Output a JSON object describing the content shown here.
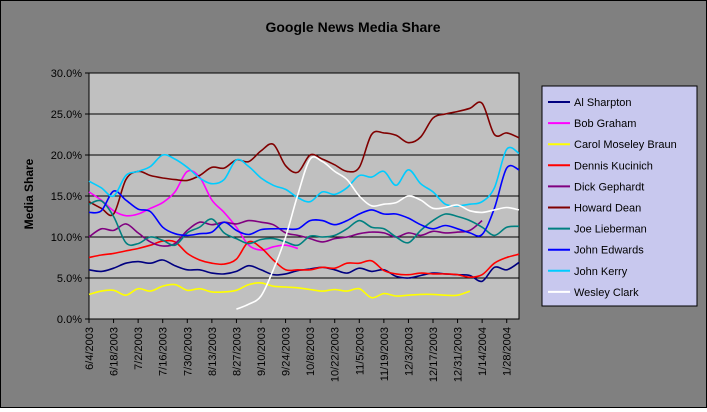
{
  "colors": {
    "chart_area": "#808080",
    "plot_area": "#c0c0c0",
    "legend_bg": "#c8c8ee"
  },
  "chart_data": {
    "type": "line",
    "title": "Google News Media Share",
    "xlabel": "",
    "ylabel": "Media Share",
    "ylim": [
      0,
      30
    ],
    "ytick_labels": [
      "0.0%",
      "5.0%",
      "10.0%",
      "15.0%",
      "20.0%",
      "25.0%",
      "30.0%"
    ],
    "ytick_values": [
      0,
      5,
      10,
      15,
      20,
      25,
      30
    ],
    "xlim": [
      "6/4/2003",
      "2/4/2004"
    ],
    "xtick_labels": [
      "6/4/2003",
      "6/18/2003",
      "7/2/2003",
      "7/16/2003",
      "7/30/2003",
      "8/13/2003",
      "8/27/2003",
      "9/10/2003",
      "9/24/2003",
      "10/8/2003",
      "10/22/2003",
      "11/5/2003",
      "11/19/2003",
      "12/3/2003",
      "12/17/2003",
      "12/31/2003",
      "1/14/2004",
      "1/28/2004"
    ],
    "grid": "horizontal",
    "legend_position": "right",
    "series": [
      {
        "name": "Al Sharpton",
        "color": "#000080",
        "x": [
          "6/4/2003",
          "6/11/2003",
          "6/18/2003",
          "6/25/2003",
          "7/2/2003",
          "7/9/2003",
          "7/16/2003",
          "7/23/2003",
          "7/30/2003",
          "8/6/2003",
          "8/13/2003",
          "8/20/2003",
          "8/27/2003",
          "9/3/2003",
          "9/10/2003",
          "9/17/2003",
          "9/24/2003",
          "10/1/2003",
          "10/8/2003",
          "10/15/2003",
          "10/22/2003",
          "10/29/2003",
          "11/5/2003",
          "11/12/2003",
          "11/19/2003",
          "11/26/2003",
          "12/3/2003",
          "12/10/2003",
          "12/17/2003",
          "12/24/2003",
          "12/31/2003",
          "1/7/2004",
          "1/14/2004",
          "1/21/2004",
          "1/28/2004",
          "2/4/2004"
        ],
        "values": [
          6.0,
          5.8,
          6.2,
          6.8,
          7.0,
          6.8,
          7.2,
          6.5,
          6.0,
          6.0,
          5.6,
          5.5,
          5.8,
          6.5,
          6.0,
          5.4,
          5.5,
          5.9,
          6.1,
          6.3,
          6.0,
          5.6,
          6.2,
          5.8,
          6.0,
          5.2,
          5.0,
          5.3,
          5.6,
          5.5,
          5.4,
          5.3,
          4.6,
          6.3,
          6.0,
          6.9
        ]
      },
      {
        "name": "Bob Graham",
        "color": "#ff00ff",
        "x": [
          "6/4/2003",
          "6/11/2003",
          "6/18/2003",
          "6/25/2003",
          "7/2/2003",
          "7/9/2003",
          "7/16/2003",
          "7/23/2003",
          "7/30/2003",
          "8/6/2003",
          "8/13/2003",
          "8/20/2003",
          "8/27/2003",
          "9/3/2003",
          "9/10/2003",
          "9/17/2003",
          "9/24/2003",
          "10/1/2003"
        ],
        "values": [
          15.5,
          14.5,
          13.2,
          12.6,
          12.8,
          13.5,
          14.2,
          15.5,
          18.0,
          17.3,
          14.5,
          13.0,
          11.2,
          9.0,
          8.4,
          8.8,
          9.0,
          8.6
        ]
      },
      {
        "name": "Carol Moseley Braun",
        "color": "#ffff00",
        "x": [
          "6/4/2003",
          "6/11/2003",
          "6/18/2003",
          "6/25/2003",
          "7/2/2003",
          "7/9/2003",
          "7/16/2003",
          "7/23/2003",
          "7/30/2003",
          "8/6/2003",
          "8/13/2003",
          "8/20/2003",
          "8/27/2003",
          "9/3/2003",
          "9/10/2003",
          "9/17/2003",
          "9/24/2003",
          "10/1/2003",
          "10/8/2003",
          "10/15/2003",
          "10/22/2003",
          "10/29/2003",
          "11/5/2003",
          "11/12/2003",
          "11/19/2003",
          "11/26/2003",
          "12/3/2003",
          "12/10/2003",
          "12/17/2003",
          "12/24/2003",
          "12/31/2003",
          "1/7/2004"
        ],
        "values": [
          3.0,
          3.4,
          3.5,
          2.9,
          3.7,
          3.4,
          4.0,
          4.2,
          3.5,
          3.7,
          3.3,
          3.3,
          3.5,
          4.2,
          4.4,
          4.0,
          3.9,
          3.8,
          3.6,
          3.4,
          3.6,
          3.4,
          3.7,
          2.6,
          3.1,
          2.8,
          2.9,
          3.0,
          3.0,
          2.9,
          2.9,
          3.4
        ]
      },
      {
        "name": "Dennis Kucinich",
        "color": "#ff0000",
        "x": [
          "6/4/2003",
          "6/11/2003",
          "6/18/2003",
          "6/25/2003",
          "7/2/2003",
          "7/9/2003",
          "7/16/2003",
          "7/23/2003",
          "7/30/2003",
          "8/6/2003",
          "8/13/2003",
          "8/20/2003",
          "8/27/2003",
          "9/3/2003",
          "9/10/2003",
          "9/17/2003",
          "9/24/2003",
          "10/1/2003",
          "10/8/2003",
          "10/15/2003",
          "10/22/2003",
          "10/29/2003",
          "11/5/2003",
          "11/12/2003",
          "11/19/2003",
          "11/26/2003",
          "12/3/2003",
          "12/10/2003",
          "12/17/2003",
          "12/24/2003",
          "12/31/2003",
          "1/7/2004",
          "1/14/2004",
          "1/21/2004",
          "1/28/2004",
          "2/4/2004"
        ],
        "values": [
          7.5,
          7.8,
          8.0,
          8.3,
          8.6,
          9.0,
          9.5,
          9.4,
          8.0,
          7.2,
          6.8,
          6.7,
          7.3,
          9.4,
          8.7,
          7.2,
          6.0,
          6.0,
          6.0,
          6.3,
          6.2,
          6.8,
          6.8,
          7.1,
          5.9,
          5.5,
          5.4,
          5.6,
          5.5,
          5.5,
          5.4,
          5.1,
          5.4,
          6.8,
          7.5,
          7.9
        ]
      },
      {
        "name": "Dick Gephardt",
        "color": "#800080",
        "x": [
          "6/4/2003",
          "6/11/2003",
          "6/18/2003",
          "6/25/2003",
          "7/2/2003",
          "7/9/2003",
          "7/16/2003",
          "7/23/2003",
          "7/30/2003",
          "8/6/2003",
          "8/13/2003",
          "8/20/2003",
          "8/27/2003",
          "9/3/2003",
          "9/10/2003",
          "9/17/2003",
          "9/24/2003",
          "10/1/2003",
          "10/8/2003",
          "10/15/2003",
          "10/22/2003",
          "10/29/2003",
          "11/5/2003",
          "11/12/2003",
          "11/19/2003",
          "11/26/2003",
          "12/3/2003",
          "12/10/2003",
          "12/17/2003",
          "12/24/2003",
          "12/31/2003",
          "1/7/2004",
          "1/14/2004"
        ],
        "values": [
          10.0,
          11.0,
          10.8,
          11.6,
          10.5,
          9.4,
          8.9,
          9.2,
          10.8,
          11.8,
          11.5,
          11.8,
          11.6,
          12.0,
          11.8,
          11.5,
          10.5,
          10.2,
          9.8,
          9.4,
          9.8,
          10.0,
          10.4,
          10.6,
          10.5,
          10.0,
          10.5,
          10.2,
          10.7,
          10.5,
          10.6,
          10.8,
          12.0
        ]
      },
      {
        "name": "Howard Dean",
        "color": "#800000",
        "x": [
          "6/4/2003",
          "6/11/2003",
          "6/18/2003",
          "6/25/2003",
          "7/2/2003",
          "7/9/2003",
          "7/16/2003",
          "7/23/2003",
          "7/30/2003",
          "8/6/2003",
          "8/13/2003",
          "8/20/2003",
          "8/27/2003",
          "9/3/2003",
          "9/10/2003",
          "9/17/2003",
          "9/24/2003",
          "10/1/2003",
          "10/8/2003",
          "10/15/2003",
          "10/22/2003",
          "10/29/2003",
          "11/5/2003",
          "11/12/2003",
          "11/19/2003",
          "11/26/2003",
          "12/3/2003",
          "12/10/2003",
          "12/17/2003",
          "12/24/2003",
          "12/31/2003",
          "1/7/2004",
          "1/14/2004",
          "1/21/2004",
          "1/28/2004",
          "2/4/2004"
        ],
        "values": [
          14.3,
          13.5,
          12.8,
          17.0,
          18.0,
          17.5,
          17.2,
          17.0,
          16.9,
          17.5,
          18.5,
          18.4,
          19.4,
          19.2,
          20.5,
          21.3,
          18.7,
          17.9,
          20.0,
          19.5,
          18.8,
          18.0,
          18.5,
          22.5,
          22.7,
          22.4,
          21.5,
          22.2,
          24.5,
          25.0,
          25.3,
          25.7,
          26.3,
          22.5,
          22.7,
          22.1
        ]
      },
      {
        "name": "Joe Lieberman",
        "color": "#008080",
        "x": [
          "6/4/2003",
          "6/11/2003",
          "6/18/2003",
          "6/25/2003",
          "7/2/2003",
          "7/9/2003",
          "7/16/2003",
          "7/23/2003",
          "7/30/2003",
          "8/6/2003",
          "8/13/2003",
          "8/20/2003",
          "8/27/2003",
          "9/3/2003",
          "9/10/2003",
          "9/17/2003",
          "9/24/2003",
          "10/1/2003",
          "10/8/2003",
          "10/15/2003",
          "10/22/2003",
          "10/29/2003",
          "11/5/2003",
          "11/12/2003",
          "11/19/2003",
          "11/26/2003",
          "12/3/2003",
          "12/10/2003",
          "12/17/2003",
          "12/24/2003",
          "12/31/2003",
          "1/7/2004",
          "1/14/2004",
          "1/21/2004",
          "1/28/2004",
          "2/4/2004"
        ],
        "values": [
          14.0,
          14.4,
          12.5,
          9.3,
          9.2,
          10.0,
          9.6,
          9.0,
          10.5,
          11.2,
          12.2,
          10.5,
          9.8,
          9.2,
          9.7,
          9.8,
          9.4,
          9.0,
          10.1,
          10.0,
          10.2,
          11.0,
          12.0,
          11.2,
          11.0,
          10.0,
          9.3,
          10.8,
          12.0,
          12.8,
          12.5,
          12.0,
          11.2,
          10.2,
          11.2,
          11.3
        ]
      },
      {
        "name": "John Edwards",
        "color": "#0000ff",
        "x": [
          "6/4/2003",
          "6/11/2003",
          "6/18/2003",
          "6/25/2003",
          "7/2/2003",
          "7/9/2003",
          "7/16/2003",
          "7/23/2003",
          "7/30/2003",
          "8/6/2003",
          "8/13/2003",
          "8/20/2003",
          "8/27/2003",
          "9/3/2003",
          "9/10/2003",
          "9/17/2003",
          "9/24/2003",
          "10/1/2003",
          "10/8/2003",
          "10/15/2003",
          "10/22/2003",
          "10/29/2003",
          "11/5/2003",
          "11/12/2003",
          "11/19/2003",
          "11/26/2003",
          "12/3/2003",
          "12/10/2003",
          "12/17/2003",
          "12/24/2003",
          "12/31/2003",
          "1/7/2004",
          "1/14/2004",
          "1/21/2004",
          "1/28/2004",
          "2/4/2004"
        ],
        "values": [
          13.0,
          13.2,
          15.6,
          14.5,
          13.4,
          13.1,
          11.2,
          10.4,
          10.2,
          10.4,
          10.6,
          11.8,
          10.8,
          10.3,
          10.9,
          11.0,
          11.0,
          11.0,
          12.0,
          12.0,
          11.5,
          12.0,
          12.8,
          13.3,
          12.8,
          12.8,
          12.3,
          11.5,
          11.0,
          11.4,
          11.0,
          10.5,
          10.3,
          13.5,
          18.4,
          18.2
        ]
      },
      {
        "name": "John Kerry",
        "color": "#00ccff",
        "x": [
          "6/4/2003",
          "6/11/2003",
          "6/18/2003",
          "6/25/2003",
          "7/2/2003",
          "7/9/2003",
          "7/16/2003",
          "7/23/2003",
          "7/30/2003",
          "8/6/2003",
          "8/13/2003",
          "8/20/2003",
          "8/27/2003",
          "9/3/2003",
          "9/10/2003",
          "9/17/2003",
          "9/24/2003",
          "10/1/2003",
          "10/8/2003",
          "10/15/2003",
          "10/22/2003",
          "10/29/2003",
          "11/5/2003",
          "11/12/2003",
          "11/19/2003",
          "11/26/2003",
          "12/3/2003",
          "12/10/2003",
          "12/17/2003",
          "12/24/2003",
          "12/31/2003",
          "1/7/2004",
          "1/14/2004",
          "1/21/2004",
          "1/28/2004",
          "2/4/2004"
        ],
        "values": [
          16.8,
          16.0,
          15.0,
          17.5,
          18.0,
          18.6,
          20.0,
          19.5,
          18.5,
          17.2,
          16.5,
          17.0,
          19.4,
          18.6,
          17.2,
          16.3,
          15.8,
          14.8,
          14.3,
          15.5,
          15.2,
          16.0,
          17.5,
          17.3,
          18.0,
          16.3,
          18.2,
          16.5,
          15.5,
          14.0,
          13.8,
          14.0,
          14.3,
          16.0,
          20.7,
          20.2
        ]
      },
      {
        "name": "Wesley Clark",
        "color": "#ffffff",
        "x": [
          "8/27/2003",
          "9/3/2003",
          "9/10/2003",
          "9/17/2003",
          "9/24/2003",
          "10/1/2003",
          "10/8/2003",
          "10/15/2003",
          "10/22/2003",
          "10/29/2003",
          "11/5/2003",
          "11/12/2003",
          "11/19/2003",
          "11/26/2003",
          "12/3/2003",
          "12/10/2003",
          "12/17/2003",
          "12/24/2003",
          "12/31/2003",
          "1/7/2004",
          "1/14/2004",
          "1/21/2004",
          "1/28/2004",
          "2/4/2004"
        ],
        "values": [
          1.2,
          1.8,
          2.8,
          6.0,
          10.0,
          15.2,
          19.5,
          19.2,
          18.0,
          17.0,
          15.0,
          13.8,
          14.0,
          14.2,
          15.0,
          14.5,
          13.5,
          13.6,
          13.9,
          13.2,
          13.0,
          13.3,
          13.6,
          13.3
        ]
      }
    ]
  }
}
